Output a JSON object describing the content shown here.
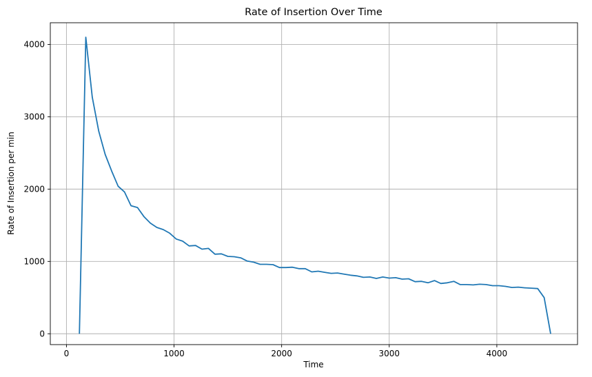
{
  "chart_data": {
    "type": "line",
    "title": "Rate of Insertion Over Time",
    "xlabel": "Time",
    "ylabel": "Rate of Insertion per min",
    "xlim": [
      -150,
      4750
    ],
    "ylim": [
      -150,
      4300
    ],
    "xticks": [
      0,
      1000,
      2000,
      3000,
      4000
    ],
    "yticks": [
      0,
      1000,
      2000,
      3000,
      4000
    ],
    "grid": true,
    "series": [
      {
        "color": "#1f77b4",
        "x": [
          120,
          180,
          240,
          300,
          360,
          420,
          480,
          540,
          600,
          660,
          720,
          780,
          840,
          900,
          960,
          1020,
          1080,
          1140,
          1200,
          1260,
          1320,
          1380,
          1440,
          1500,
          1560,
          1620,
          1680,
          1740,
          1800,
          1860,
          1920,
          1980,
          2040,
          2100,
          2160,
          2220,
          2280,
          2340,
          2400,
          2460,
          2520,
          2580,
          2640,
          2700,
          2760,
          2820,
          2880,
          2940,
          3000,
          3060,
          3120,
          3180,
          3240,
          3300,
          3360,
          3420,
          3480,
          3540,
          3600,
          3660,
          3720,
          3780,
          3840,
          3900,
          3960,
          4020,
          4080,
          4140,
          4200,
          4260,
          4320,
          4380,
          4440,
          4500
        ],
        "y": [
          0,
          4100,
          3270,
          2800,
          2480,
          2250,
          2040,
          1960,
          1770,
          1745,
          1620,
          1530,
          1470,
          1440,
          1390,
          1310,
          1280,
          1215,
          1220,
          1170,
          1180,
          1100,
          1105,
          1070,
          1065,
          1050,
          1005,
          990,
          960,
          960,
          955,
          915,
          915,
          920,
          900,
          900,
          855,
          865,
          850,
          835,
          840,
          825,
          810,
          800,
          780,
          785,
          765,
          785,
          770,
          775,
          755,
          760,
          720,
          725,
          705,
          735,
          695,
          705,
          725,
          680,
          680,
          675,
          685,
          680,
          665,
          665,
          655,
          640,
          645,
          635,
          630,
          625,
          500,
          0
        ]
      }
    ]
  }
}
